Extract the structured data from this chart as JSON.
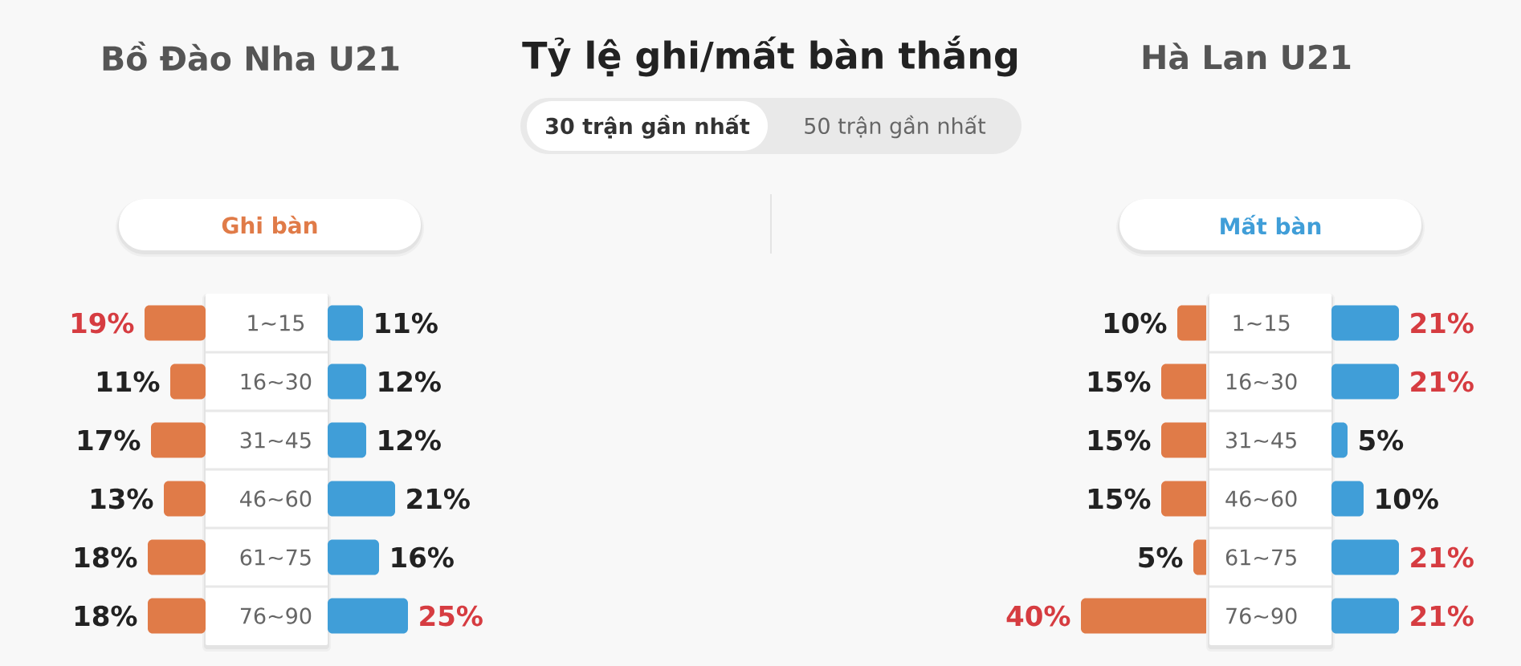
{
  "chart_data": [
    {
      "type": "bar",
      "orientation": "horizontal",
      "title": "Bồ Đào Nha U21",
      "categories": [
        "1~15",
        "16~30",
        "31~45",
        "46~60",
        "61~75",
        "76~90"
      ],
      "series": [
        {
          "name": "Ghi bàn",
          "color": "#e07b48",
          "values": [
            19,
            11,
            17,
            13,
            18,
            18
          ],
          "value_labels": [
            "19%",
            "11%",
            "17%",
            "13%",
            "18%",
            "18%"
          ]
        }
      ]
    },
    {
      "type": "bar",
      "orientation": "horizontal",
      "categories": [
        null,
        null,
        null,
        null,
        null,
        null
      ],
      "series": [
        {
          "color": "#409ed8",
          "values": [
            11,
            12,
            12,
            21,
            16,
            25
          ],
          "value_labels": [
            "11%",
            "12%",
            "12%",
            "21%",
            "16%",
            "25%"
          ]
        }
      ]
    },
    {
      "type": "other",
      "title": "Tỷ lệ ghi/mất bàn thắng",
      "annotations": [
        "30 trận gần nhất",
        "50 trận gần nhất"
      ]
    },
    {
      "type": "bar",
      "orientation": "horizontal",
      "title": "Hà Lan U21",
      "categories": [
        null,
        null,
        null,
        null,
        null,
        null
      ],
      "series": [
        {
          "color": "#e07b48",
          "values": [
            10,
            15,
            15,
            15,
            5,
            40
          ],
          "value_labels": [
            "10%",
            "15%",
            "15%",
            "15%",
            "5%",
            "40%"
          ]
        }
      ]
    },
    {
      "type": "bar",
      "orientation": "horizontal",
      "categories": [
        "1~15",
        "16~30",
        "31~45",
        "46~60",
        "61~75",
        "76~90"
      ],
      "series": [
        {
          "name": "Mất bàn",
          "color": "#409ed8",
          "values": [
            21,
            21,
            5,
            10,
            21,
            21
          ],
          "value_labels": [
            "21%",
            "21%",
            "5%",
            "10%",
            "21%",
            "21%"
          ]
        }
      ]
    }
  ]
}
